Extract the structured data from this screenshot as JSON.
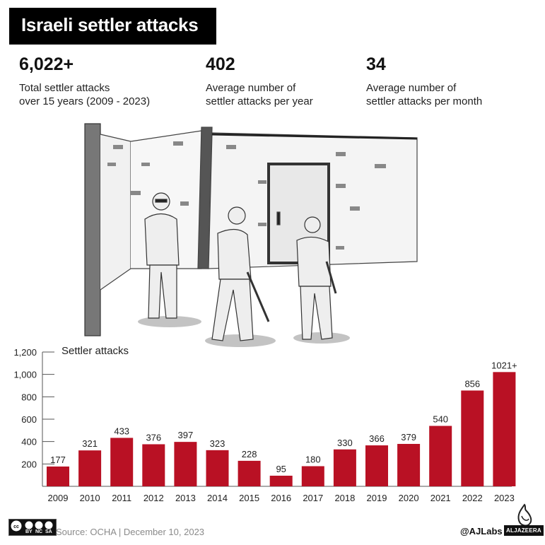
{
  "header": {
    "title": "Israeli settler attacks"
  },
  "stats": [
    {
      "value": "6,022+",
      "line1": "Total settler attacks",
      "line2": "over 15 years (2009 - 2023)"
    },
    {
      "value": "402",
      "line1": "Average number of",
      "line2": "settler attacks per year"
    },
    {
      "value": "34",
      "line1": "Average number of",
      "line2": "settler attacks per month"
    }
  ],
  "illustration": {
    "description": "Sketch of three settlers, two holding sticks, in front of a stone building with a wooden door"
  },
  "colors": {
    "bar": "#b91124",
    "axis": "#555555",
    "title_bg": "#000000"
  },
  "chart_data": {
    "type": "bar",
    "title": "Settler attacks",
    "xlabel": "",
    "ylabel": "",
    "categories": [
      "2009",
      "2010",
      "2011",
      "2012",
      "2013",
      "2014",
      "2015",
      "2016",
      "2017",
      "2018",
      "2019",
      "2020",
      "2021",
      "2022",
      "2023"
    ],
    "values": [
      177,
      321,
      433,
      376,
      397,
      323,
      228,
      95,
      180,
      330,
      366,
      379,
      540,
      856,
      1021
    ],
    "data_labels": [
      "177",
      "321",
      "433",
      "376",
      "397",
      "323",
      "228",
      "95",
      "180",
      "330",
      "366",
      "379",
      "540",
      "856",
      "1021+"
    ],
    "ylim": [
      0,
      1200
    ],
    "yticks": [
      200,
      400,
      600,
      800,
      1000,
      1200
    ],
    "ytick_labels": [
      "200",
      "400",
      "600",
      "800",
      "1,000",
      "1,200"
    ],
    "grid": false,
    "legend": "none"
  },
  "footer": {
    "license_labels": [
      "BY",
      "NC",
      "SA"
    ],
    "source": "Source: OCHA | December 10, 2023",
    "handle": "@AJLabs",
    "brand": "ALJAZEERA"
  }
}
